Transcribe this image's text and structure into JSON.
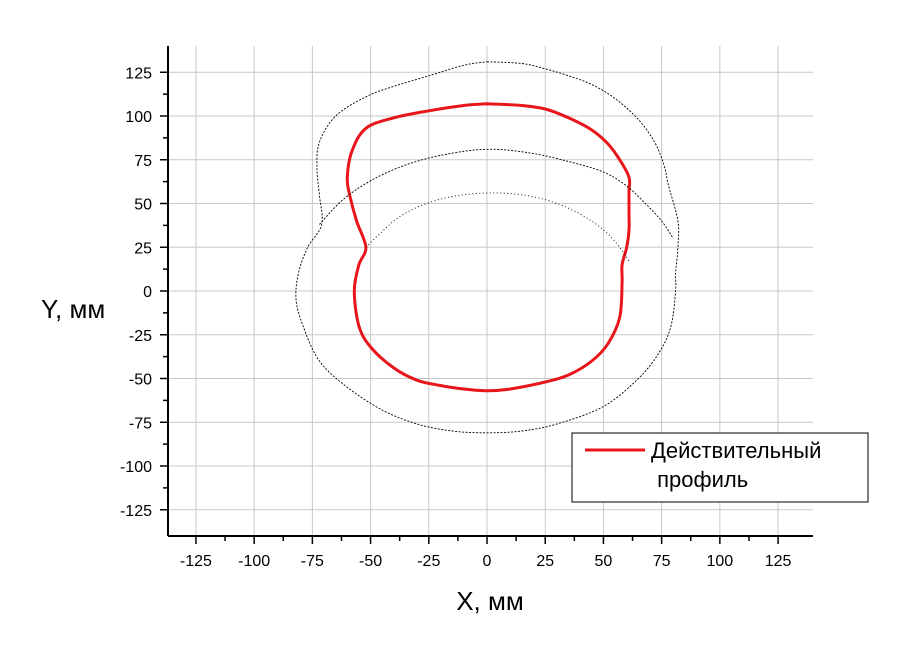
{
  "chart_data": {
    "type": "line",
    "xlabel": "X, мм",
    "ylabel": "Y, мм",
    "xlim": [
      -137,
      140
    ],
    "ylim": [
      -140,
      140
    ],
    "x_ticks": [
      -125,
      -100,
      -75,
      -50,
      -25,
      0,
      25,
      50,
      75,
      100,
      125
    ],
    "y_ticks": [
      125,
      100,
      75,
      50,
      25,
      0,
      -25,
      -50,
      -75,
      -100,
      -125
    ],
    "grid": true,
    "legend": {
      "position": "bottom-right",
      "line1": "Действительный",
      "line2": " профиль"
    },
    "series": [
      {
        "name": "Действительный профиль",
        "color": "#e8151b",
        "style": "solid",
        "points": [
          [
            0,
            107
          ],
          [
            15,
            106
          ],
          [
            25,
            104
          ],
          [
            35,
            99
          ],
          [
            45,
            92
          ],
          [
            52,
            84
          ],
          [
            57,
            75
          ],
          [
            61,
            65
          ],
          [
            61,
            57
          ],
          [
            61,
            45
          ],
          [
            61,
            35
          ],
          [
            60,
            25
          ],
          [
            58,
            15
          ],
          [
            58,
            5
          ],
          [
            57,
            -15
          ],
          [
            52,
            -30
          ],
          [
            45,
            -40
          ],
          [
            35,
            -48
          ],
          [
            25,
            -52
          ],
          [
            10,
            -56
          ],
          [
            0,
            -57
          ],
          [
            -10,
            -56
          ],
          [
            -20,
            -54
          ],
          [
            -30,
            -51
          ],
          [
            -40,
            -44
          ],
          [
            -50,
            -32
          ],
          [
            -55,
            -20
          ],
          [
            -57,
            0
          ],
          [
            -55,
            15
          ],
          [
            -52,
            25
          ],
          [
            -56,
            40
          ],
          [
            -59,
            55
          ],
          [
            -60,
            65
          ],
          [
            -58,
            80
          ],
          [
            -52,
            93
          ],
          [
            -40,
            99
          ],
          [
            -25,
            103
          ],
          [
            -10,
            106
          ],
          [
            0,
            107
          ]
        ]
      },
      {
        "color": "#000000",
        "style": "dashed",
        "points": [
          [
            0,
            131
          ],
          [
            15,
            130
          ],
          [
            25,
            127
          ],
          [
            35,
            123
          ],
          [
            45,
            118
          ],
          [
            55,
            110
          ],
          [
            65,
            98
          ],
          [
            72,
            85
          ],
          [
            76,
            72
          ],
          [
            78,
            60
          ],
          [
            82,
            40
          ],
          [
            82,
            25
          ],
          [
            81,
            10
          ],
          [
            81,
            0
          ],
          [
            79,
            -20
          ],
          [
            74,
            -35
          ],
          [
            65,
            -50
          ],
          [
            50,
            -66
          ],
          [
            30,
            -76
          ],
          [
            15,
            -80
          ],
          [
            0,
            -81
          ],
          [
            -15,
            -80
          ],
          [
            -30,
            -76
          ],
          [
            -45,
            -68
          ],
          [
            -60,
            -55
          ],
          [
            -72,
            -40
          ],
          [
            -79,
            -20
          ],
          [
            -82,
            -5
          ],
          [
            -81,
            10
          ],
          [
            -77,
            25
          ],
          [
            -71,
            38
          ],
          [
            -72,
            55
          ],
          [
            -73,
            70
          ],
          [
            -72,
            85
          ],
          [
            -65,
            100
          ],
          [
            -52,
            111
          ],
          [
            -40,
            117
          ],
          [
            -25,
            123
          ],
          [
            -10,
            129
          ],
          [
            0,
            131
          ]
        ]
      },
      {
        "color": "#000000",
        "style": "dashed",
        "points": [
          [
            -72,
            38
          ],
          [
            -62,
            52
          ],
          [
            -50,
            63
          ],
          [
            -35,
            72
          ],
          [
            -18,
            78
          ],
          [
            0,
            81
          ],
          [
            18,
            79
          ],
          [
            35,
            74
          ],
          [
            50,
            68
          ],
          [
            60,
            60
          ],
          [
            68,
            50
          ],
          [
            75,
            40
          ],
          [
            80,
            30
          ]
        ]
      },
      {
        "color": "#000000",
        "style": "dotted",
        "points": [
          [
            -52,
            25
          ],
          [
            -45,
            34
          ],
          [
            -38,
            42
          ],
          [
            -28,
            49
          ],
          [
            -15,
            54
          ],
          [
            0,
            56
          ],
          [
            15,
            55
          ],
          [
            28,
            51
          ],
          [
            40,
            44
          ],
          [
            50,
            35
          ],
          [
            57,
            25
          ],
          [
            61,
            17
          ]
        ]
      }
    ]
  }
}
